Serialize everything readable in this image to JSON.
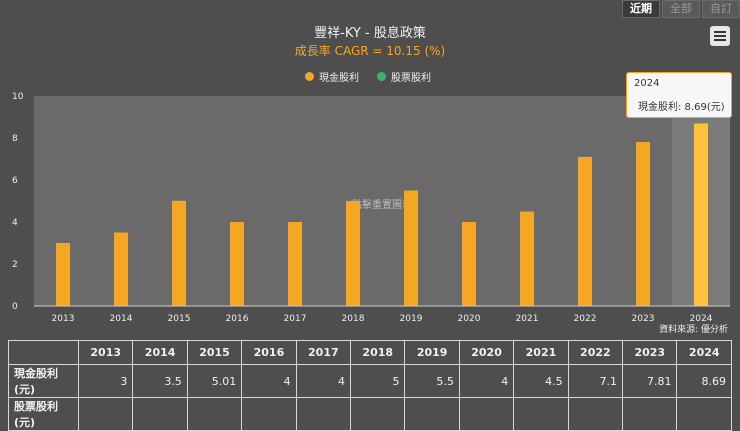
{
  "tabs": [
    {
      "label": "近期",
      "active": true
    },
    {
      "label": "全部",
      "active": false
    },
    {
      "label": "自訂",
      "active": false
    }
  ],
  "source_text": "資料來源: 優分析",
  "chart_data": {
    "type": "bar",
    "title": "豐祥-KY - 股息政策",
    "subtitle": "成長率 CAGR = 10.15 (%)",
    "categories": [
      "2013",
      "2014",
      "2015",
      "2016",
      "2017",
      "2018",
      "2019",
      "2020",
      "2021",
      "2022",
      "2023",
      "2024"
    ],
    "series": [
      {
        "name": "現金股利",
        "color": "#f5a623",
        "values": [
          3,
          3.5,
          5.01,
          4,
          4,
          5,
          5.5,
          4,
          4.5,
          7.1,
          7.81,
          8.69
        ]
      },
      {
        "name": "股票股利",
        "color": "#3cb371",
        "values": [
          null,
          null,
          null,
          null,
          null,
          null,
          null,
          null,
          null,
          null,
          null,
          null
        ]
      }
    ],
    "ylim": [
      0,
      10
    ],
    "yticks": [
      0,
      2,
      4,
      6,
      8,
      10
    ],
    "grid": false,
    "legend": "top-center",
    "watermark": "(點擊重置圖表)",
    "highlight_index": 11,
    "tooltip": {
      "year": "2024",
      "label": "現金股利: 8.69(元)"
    }
  },
  "table": {
    "years": [
      "2013",
      "2014",
      "2015",
      "2016",
      "2017",
      "2018",
      "2019",
      "2020",
      "2021",
      "2022",
      "2023",
      "2024"
    ],
    "rows": [
      {
        "label": "現金股利(元)",
        "values": [
          "3",
          "3.5",
          "5.01",
          "4",
          "4",
          "5",
          "5.5",
          "4",
          "4.5",
          "7.1",
          "7.81",
          "8.69"
        ]
      },
      {
        "label": "股票股利(元)",
        "values": [
          "",
          "",
          "",
          "",
          "",
          "",
          "",
          "",
          "",
          "",
          "",
          ""
        ]
      }
    ]
  }
}
